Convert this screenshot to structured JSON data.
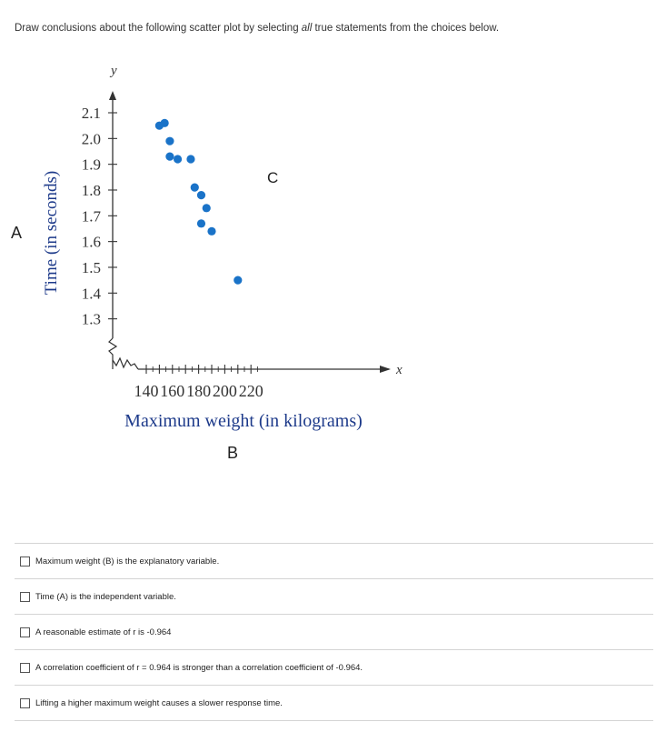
{
  "prompt": {
    "before": "Draw conclusions about the following scatter plot by selecting ",
    "emphasis": "all",
    "after": " true statements from the choices below."
  },
  "labels": {
    "a": "A",
    "b": "B",
    "c": "C"
  },
  "chart_data": {
    "type": "scatter",
    "xlabel": "Maximum weight (in kilograms)",
    "ylabel": "Time (in seconds)",
    "x_axis_letter": "x",
    "y_axis_letter": "y",
    "x_ticks": [
      140,
      160,
      180,
      200,
      220
    ],
    "y_ticks": [
      "1.3",
      "1.4",
      "1.5",
      "1.6",
      "1.7",
      "1.8",
      "1.9",
      "2.0",
      "2.1"
    ],
    "xlim": [
      130,
      225
    ],
    "ylim": [
      1.25,
      2.15
    ],
    "point_color": "#1a73c8",
    "points": [
      {
        "x": 150,
        "y": 2.05
      },
      {
        "x": 154,
        "y": 2.06
      },
      {
        "x": 158,
        "y": 1.99
      },
      {
        "x": 158,
        "y": 1.93
      },
      {
        "x": 164,
        "y": 1.92
      },
      {
        "x": 174,
        "y": 1.92
      },
      {
        "x": 177,
        "y": 1.81
      },
      {
        "x": 182,
        "y": 1.78
      },
      {
        "x": 186,
        "y": 1.73
      },
      {
        "x": 182,
        "y": 1.67
      },
      {
        "x": 190,
        "y": 1.64
      },
      {
        "x": 210,
        "y": 1.45
      }
    ]
  },
  "options": [
    {
      "label": "Maximum weight (B) is the explanatory variable.",
      "checked": false
    },
    {
      "label": "Time (A) is the independent variable.",
      "checked": false
    },
    {
      "label": "A reasonable estimate of r is -0.964",
      "checked": false
    },
    {
      "label": "A correlation coefficient of r = 0.964 is stronger than a correlation coefficient of -0.964.",
      "checked": false
    },
    {
      "label": "Lifting a higher maximum weight causes a slower response time.",
      "checked": false
    }
  ]
}
